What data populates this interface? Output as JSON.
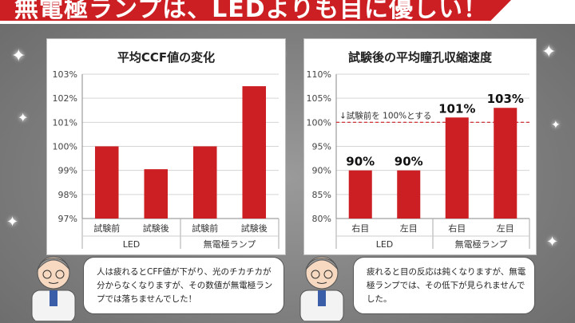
{
  "header": {
    "title": "無電極ランプは、LEDよりも目に優しい！"
  },
  "colors": {
    "bar": "#cc1f24",
    "accent": "#cc1f24"
  },
  "icons": [
    "sparkle-icon",
    "doctor-icon"
  ],
  "chart_data": [
    {
      "type": "bar",
      "title": "平均CCF値の変化",
      "categories": [
        "試験前",
        "試験後",
        "試験前",
        "試験後"
      ],
      "groups": [
        "LED",
        "無電極ランプ"
      ],
      "values": [
        100.0,
        99.05,
        100.0,
        102.5
      ],
      "ylim": [
        97,
        103
      ],
      "yticks": [
        "97%",
        "98%",
        "99%",
        "100%",
        "101%",
        "102%",
        "103%"
      ],
      "grid": true
    },
    {
      "type": "bar",
      "title": "試験後の平均瞳孔収縮速度",
      "categories": [
        "右目",
        "左目",
        "右目",
        "左目"
      ],
      "groups": [
        "LED",
        "無電極ランプ"
      ],
      "values": [
        90,
        90,
        101,
        103
      ],
      "data_labels": [
        "90%",
        "90%",
        "101%",
        "103%"
      ],
      "ylim": [
        80,
        110
      ],
      "yticks": [
        "80%",
        "85%",
        "90%",
        "95%",
        "100%",
        "105%",
        "110%"
      ],
      "reference": {
        "value": 100,
        "label": "↓試験前を 100%とする"
      },
      "grid": true
    }
  ],
  "captions": {
    "left": "人は疲れるとCFF値が下がり、光のチカチカが分からなくなりますが、その数値が無電極ランプでは落ちませんでした！",
    "right": "疲れると目の反応は鈍くなりますが、無電極ランプでは、その低下が見られませんでした。"
  }
}
